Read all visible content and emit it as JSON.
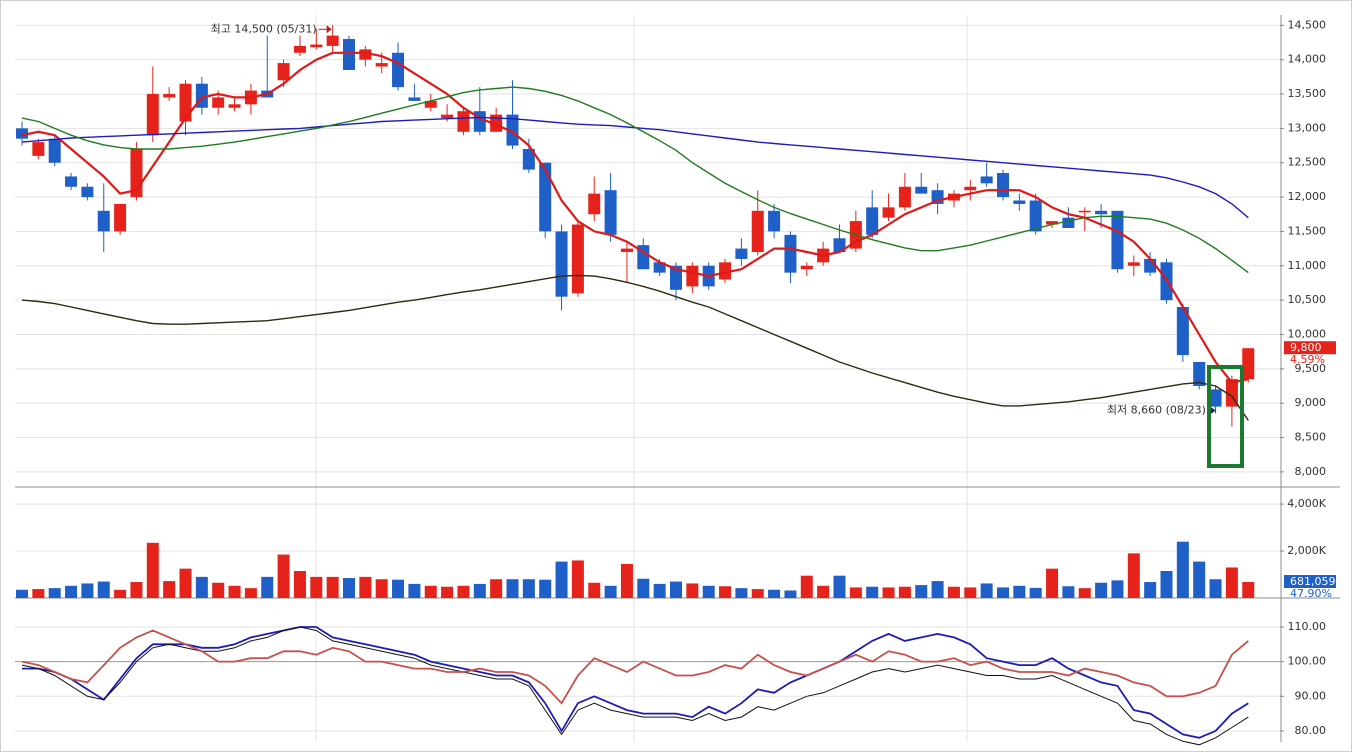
{
  "chart_data": [
    {
      "type": "candlestick",
      "up_color": "#e5231b",
      "down_color": "#1f5fc8",
      "open": [
        13000,
        12600,
        12850,
        12300,
        12150,
        11800,
        11500,
        12000,
        12900,
        13450,
        13100,
        13650,
        13300,
        13300,
        13350,
        13550,
        13700,
        14100,
        14180,
        14200,
        14300,
        14000,
        13900,
        14100,
        13450,
        13300,
        13150,
        12950,
        13250,
        12950,
        13200,
        12700,
        12500,
        11500,
        10600,
        11750,
        12100,
        11200,
        11300,
        11050,
        11000,
        10700,
        11000,
        10800,
        11250,
        11200,
        11800,
        11450,
        10950,
        11050,
        11400,
        11250,
        11850,
        11700,
        11850,
        12150,
        12100,
        11950,
        12100,
        12300,
        12350,
        11950,
        11950,
        11600,
        11700,
        11800,
        11800,
        11800,
        11000,
        11100,
        11050,
        10400,
        9600,
        9200,
        8950,
        9350
      ],
      "high": [
        13100,
        12850,
        12900,
        12350,
        12200,
        12200,
        11900,
        12800,
        13900,
        13600,
        13700,
        13750,
        13550,
        13450,
        13650,
        14350,
        14000,
        14350,
        14450,
        14500,
        14350,
        14200,
        14100,
        14250,
        13650,
        13500,
        13350,
        13300,
        13600,
        13300,
        13700,
        12850,
        12500,
        11600,
        11650,
        12300,
        12350,
        11350,
        11400,
        11100,
        11050,
        11050,
        11050,
        11100,
        11400,
        12100,
        11900,
        11500,
        11050,
        11350,
        11600,
        11800,
        12100,
        12050,
        12350,
        12350,
        12200,
        12100,
        12250,
        12500,
        12400,
        12050,
        12050,
        11650,
        11850,
        11850,
        11900,
        11800,
        11150,
        11200,
        11100,
        10450,
        9600,
        9250,
        9400,
        9800
      ],
      "low": [
        12750,
        12550,
        12450,
        12100,
        11950,
        11200,
        11450,
        11950,
        12800,
        13400,
        12900,
        13200,
        13200,
        13250,
        13200,
        13450,
        13600,
        14050,
        14150,
        14100,
        13850,
        13900,
        13800,
        13550,
        13400,
        13250,
        13100,
        12900,
        12900,
        12950,
        12700,
        12350,
        11400,
        10350,
        10550,
        11650,
        11350,
        10750,
        10950,
        10850,
        10500,
        10600,
        10650,
        10750,
        11000,
        11150,
        11400,
        10750,
        10850,
        11000,
        11200,
        11200,
        11400,
        11650,
        11800,
        12050,
        11750,
        11850,
        11950,
        12150,
        11950,
        11800,
        11450,
        11550,
        11550,
        11500,
        11550,
        10900,
        10850,
        10850,
        10450,
        9600,
        9200,
        8850,
        8660,
        9300
      ],
      "close": [
        12850,
        12800,
        12500,
        12150,
        12000,
        11500,
        11900,
        12700,
        13500,
        13500,
        13650,
        13300,
        13450,
        13350,
        13550,
        13450,
        13950,
        14200,
        14220,
        14350,
        13850,
        14150,
        13950,
        13600,
        13400,
        13400,
        13200,
        13250,
        12950,
        13200,
        12750,
        12400,
        11500,
        10550,
        11600,
        12050,
        11450,
        11250,
        10950,
        10900,
        10650,
        11000,
        10700,
        11050,
        11100,
        11800,
        11500,
        10900,
        11000,
        11250,
        11200,
        11650,
        11450,
        11850,
        12150,
        12050,
        11900,
        12050,
        12150,
        12200,
        12000,
        11900,
        11500,
        11650,
        11550,
        11800,
        11750,
        10950,
        11050,
        10900,
        10500,
        9700,
        9250,
        8950,
        9350,
        9800
      ],
      "series": [
        {
          "color": "#e01818",
          "values": [
            12900,
            12950,
            12900,
            12700,
            12500,
            12300,
            12050,
            12100,
            12450,
            12800,
            13150,
            13450,
            13500,
            13450,
            13450,
            13500,
            13650,
            13850,
            14000,
            14100,
            14100,
            14100,
            14050,
            13950,
            13800,
            13650,
            13500,
            13300,
            13150,
            13050,
            12950,
            12750,
            12400,
            11950,
            11650,
            11500,
            11450,
            11350,
            11200,
            11050,
            10950,
            10900,
            10850,
            10900,
            10950,
            11100,
            11250,
            11250,
            11200,
            11150,
            11200,
            11350,
            11450,
            11600,
            11750,
            11850,
            11950,
            12000,
            12050,
            12100,
            12100,
            12100,
            12000,
            11850,
            11750,
            11700,
            11600,
            11500,
            11350,
            11100,
            10800,
            10400,
            10000,
            9600,
            9300,
            9350
          ]
        },
        {
          "color": "#1c1cc0",
          "values": [
            12800,
            12820,
            12840,
            12860,
            12870,
            12880,
            12890,
            12900,
            12910,
            12920,
            12930,
            12940,
            12950,
            12960,
            12970,
            12980,
            12990,
            13000,
            13020,
            13040,
            13060,
            13080,
            13100,
            13110,
            13120,
            13130,
            13140,
            13150,
            13160,
            13150,
            13140,
            13120,
            13100,
            13080,
            13060,
            13050,
            13040,
            13020,
            13000,
            12980,
            12950,
            12920,
            12890,
            12860,
            12830,
            12800,
            12780,
            12760,
            12740,
            12720,
            12700,
            12680,
            12660,
            12640,
            12620,
            12600,
            12580,
            12560,
            12540,
            12520,
            12500,
            12480,
            12460,
            12440,
            12420,
            12400,
            12380,
            12360,
            12340,
            12320,
            12280,
            12220,
            12150,
            12050,
            11900,
            11700
          ]
        },
        {
          "color": "#1e7d1e",
          "values": [
            13150,
            13100,
            13000,
            12900,
            12820,
            12760,
            12720,
            12700,
            12700,
            12700,
            12720,
            12740,
            12770,
            12800,
            12840,
            12880,
            12920,
            12960,
            13000,
            13050,
            13100,
            13160,
            13220,
            13280,
            13340,
            13400,
            13460,
            13520,
            13560,
            13580,
            13600,
            13580,
            13540,
            13480,
            13400,
            13300,
            13200,
            13080,
            12950,
            12820,
            12680,
            12500,
            12350,
            12200,
            12080,
            11960,
            11850,
            11760,
            11680,
            11600,
            11520,
            11450,
            11380,
            11320,
            11260,
            11220,
            11220,
            11260,
            11300,
            11360,
            11420,
            11480,
            11540,
            11600,
            11650,
            11700,
            11720,
            11720,
            11700,
            11680,
            11620,
            11520,
            11400,
            11250,
            11080,
            10900
          ]
        },
        {
          "color": "#2e2a10",
          "values": [
            10500,
            10480,
            10450,
            10400,
            10350,
            10300,
            10250,
            10200,
            10160,
            10150,
            10150,
            10160,
            10170,
            10180,
            10190,
            10200,
            10230,
            10260,
            10290,
            10320,
            10350,
            10390,
            10430,
            10470,
            10500,
            10540,
            10580,
            10620,
            10650,
            10690,
            10730,
            10770,
            10810,
            10850,
            10860,
            10850,
            10810,
            10760,
            10700,
            10630,
            10550,
            10470,
            10400,
            10300,
            10200,
            10100,
            10000,
            9900,
            9800,
            9700,
            9600,
            9520,
            9440,
            9370,
            9300,
            9230,
            9160,
            9100,
            9050,
            9000,
            8960,
            8960,
            8980,
            9000,
            9020,
            9050,
            9080,
            9120,
            9160,
            9200,
            9240,
            9280,
            9300,
            9250,
            9100,
            8750
          ]
        }
      ],
      "ylim": [
        7780,
        14650
      ],
      "yticks": [
        {
          "value": 8000,
          "label": "8,000"
        },
        {
          "value": 8500,
          "label": "8,500"
        },
        {
          "value": 9000,
          "label": "9,000"
        },
        {
          "value": 9500,
          "label": "9,500"
        },
        {
          "value": 10000,
          "label": "10,000"
        },
        {
          "value": 10500,
          "label": "10,500"
        },
        {
          "value": 11000,
          "label": "11,000"
        },
        {
          "value": 11500,
          "label": "11,500"
        },
        {
          "value": 12000,
          "label": "12,000"
        },
        {
          "value": 12500,
          "label": "12,500"
        },
        {
          "value": 13000,
          "label": "13,000"
        },
        {
          "value": 13500,
          "label": "13,500"
        },
        {
          "value": 14000,
          "label": "14,000"
        },
        {
          "value": 14500,
          "label": "14,500"
        }
      ],
      "grid": true,
      "annotations": [
        "최고 14,500 (05/31)",
        "최저 8,660 (08/23)"
      ],
      "last_price_label": "9,800",
      "change_label": "4.59%"
    },
    {
      "type": "bar",
      "values": [
        350,
        380,
        420,
        520,
        620,
        700,
        350,
        680,
        2350,
        720,
        1250,
        900,
        650,
        520,
        420,
        900,
        1850,
        1150,
        900,
        900,
        850,
        900,
        800,
        780,
        600,
        520,
        480,
        520,
        600,
        800,
        800,
        800,
        780,
        1550,
        1600,
        650,
        520,
        1450,
        820,
        600,
        700,
        620,
        520,
        500,
        420,
        380,
        350,
        320,
        950,
        520,
        950,
        450,
        480,
        450,
        480,
        550,
        720,
        480,
        450,
        620,
        450,
        520,
        430,
        1250,
        500,
        420,
        650,
        750,
        1900,
        680,
        1150,
        2400,
        1550,
        800,
        1300,
        681.059
      ],
      "ylim": [
        0,
        4600
      ],
      "yticks": [
        {
          "value": 2000,
          "label": "2,000K"
        },
        {
          "value": 4000,
          "label": "4,000K"
        }
      ],
      "grid": true,
      "last_value_label": "681,059",
      "ratio_label": "47.90%"
    },
    {
      "type": "line",
      "series": [
        {
          "color": "#1c1cb4",
          "values": [
            98,
            98,
            97,
            95,
            92,
            89,
            95,
            101,
            105,
            105,
            105,
            104,
            104,
            105,
            107,
            108,
            109,
            110,
            110,
            107,
            106,
            105,
            104,
            103,
            102,
            100,
            99,
            98,
            97,
            96,
            96,
            94,
            88,
            80,
            88,
            90,
            88,
            86,
            85,
            85,
            85,
            84,
            87,
            85,
            88,
            92,
            91,
            94,
            96,
            98,
            100,
            103,
            106,
            108,
            106,
            107,
            108,
            107,
            105,
            101,
            100,
            99,
            99,
            101,
            98,
            96,
            94,
            93,
            86,
            85,
            82,
            79,
            78,
            80,
            85,
            88
          ]
        },
        {
          "color": "#111111",
          "values": [
            99,
            98,
            96,
            93,
            90,
            89,
            94,
            100,
            104,
            105,
            104,
            103,
            103,
            104,
            106,
            107,
            109,
            110,
            109,
            106,
            105,
            104,
            103,
            102,
            101,
            99,
            98,
            97,
            96,
            95,
            95,
            93,
            86,
            79,
            86,
            88,
            86,
            85,
            84,
            84,
            84,
            83,
            85,
            83,
            84,
            87,
            86,
            88,
            90,
            91,
            93,
            95,
            97,
            98,
            97,
            98,
            99,
            98,
            97,
            96,
            96,
            95,
            95,
            96,
            94,
            92,
            90,
            88,
            83,
            82,
            79,
            77,
            76,
            78,
            81,
            84
          ]
        },
        {
          "color": "#c8504a",
          "values": [
            100,
            99,
            97,
            95,
            94,
            99,
            104,
            107,
            109,
            107,
            105,
            103,
            100,
            100,
            101,
            101,
            103,
            103,
            102,
            104,
            103,
            100,
            100,
            99,
            98,
            98,
            97,
            97,
            98,
            97,
            97,
            96,
            93,
            88,
            96,
            101,
            99,
            97,
            100,
            98,
            96,
            96,
            97,
            99,
            98,
            102,
            99,
            97,
            96,
            98,
            100,
            102,
            100,
            103,
            102,
            100,
            100,
            101,
            99,
            100,
            98,
            97,
            97,
            97,
            96,
            98,
            97,
            96,
            94,
            93,
            90,
            90,
            91,
            93,
            102,
            106
          ]
        }
      ],
      "ylim": [
        76.8,
        117.8
      ],
      "yticks": [
        {
          "value": 80,
          "label": "80.00"
        },
        {
          "value": 90,
          "label": "90.00"
        },
        {
          "value": 100,
          "label": "100.00"
        },
        {
          "value": 110,
          "label": "110.00"
        }
      ],
      "grid": true
    }
  ]
}
